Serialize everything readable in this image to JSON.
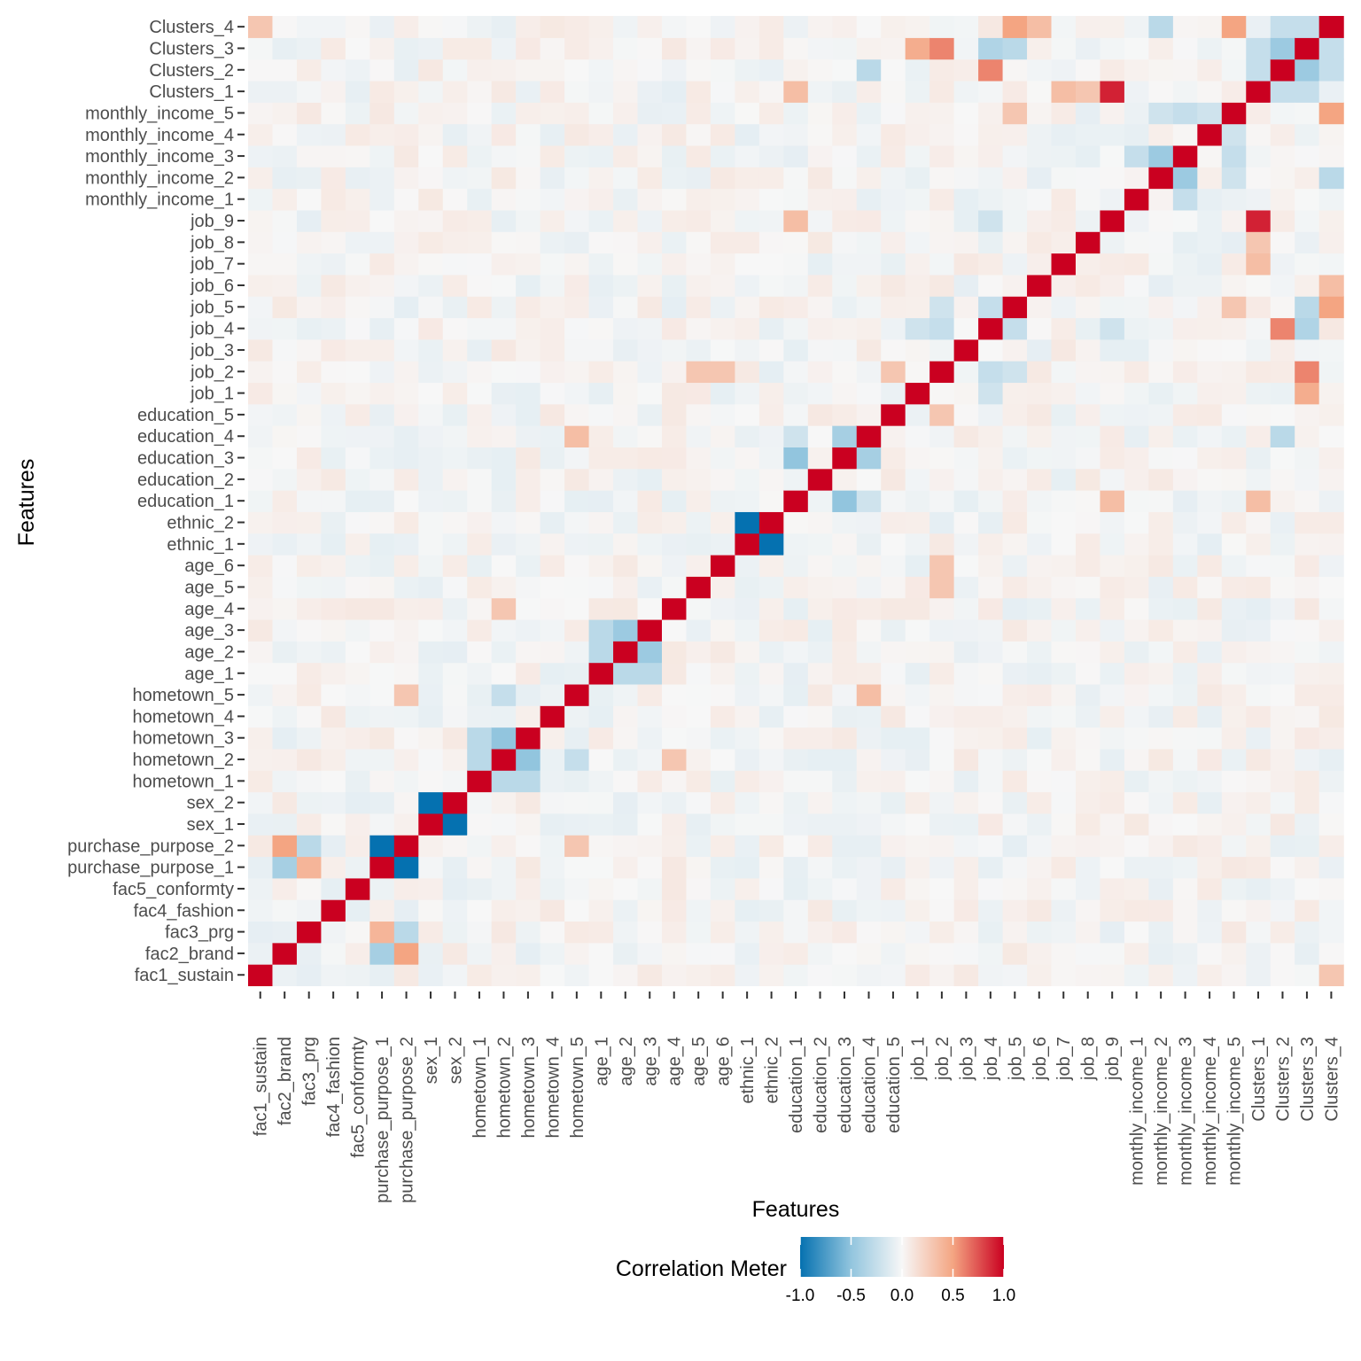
{
  "chart_data": {
    "type": "heatmap",
    "title": "",
    "xlabel": "Features",
    "ylabel": "Features",
    "features": [
      "fac1_sustain",
      "fac2_brand",
      "fac3_prg",
      "fac4_fashion",
      "fac5_conformty",
      "purchase_purpose_1",
      "purchase_purpose_2",
      "sex_1",
      "sex_2",
      "hometown_1",
      "hometown_2",
      "hometown_3",
      "hometown_4",
      "hometown_5",
      "age_1",
      "age_2",
      "age_3",
      "age_4",
      "age_5",
      "age_6",
      "ethnic_1",
      "ethnic_2",
      "education_1",
      "education_2",
      "education_3",
      "education_4",
      "education_5",
      "job_1",
      "job_2",
      "job_3",
      "job_4",
      "job_5",
      "job_6",
      "job_7",
      "job_8",
      "job_9",
      "monthly_income_1",
      "monthly_income_2",
      "monthly_income_3",
      "monthly_income_4",
      "monthly_income_5",
      "Clusters_1",
      "Clusters_2",
      "Clusters_3",
      "Clusters_4"
    ],
    "value_range": [
      -1,
      1
    ],
    "colors": {
      "low": "#0571b0",
      "mid_low": "#92c5de",
      "mid": "#f7f7f7",
      "mid_high": "#f4a582",
      "high": "#ca0020"
    },
    "legend": {
      "title": "Correlation Meter",
      "position": "bottom",
      "ticks": [
        "-1.0",
        "-0.5",
        "0.0",
        "0.5",
        "1.0"
      ]
    },
    "strong_correlations": [
      {
        "a": "purchase_purpose_1",
        "b": "purchase_purpose_2",
        "value": -1.0
      },
      {
        "a": "sex_1",
        "b": "sex_2",
        "value": -1.0
      },
      {
        "a": "ethnic_1",
        "b": "ethnic_2",
        "value": -1.0
      },
      {
        "a": "job_9",
        "b": "Clusters_1",
        "value": 0.9
      },
      {
        "a": "job_4",
        "b": "Clusters_2",
        "value": 0.6
      },
      {
        "a": "job_2",
        "b": "Clusters_3",
        "value": 0.6
      },
      {
        "a": "job_1",
        "b": "Clusters_3",
        "value": 0.45
      },
      {
        "a": "job_5",
        "b": "Clusters_4",
        "value": 0.5
      },
      {
        "a": "monthly_income_5",
        "b": "Clusters_4",
        "value": 0.5
      },
      {
        "a": "job_5",
        "b": "monthly_income_5",
        "value": 0.3
      },
      {
        "a": "Clusters_2",
        "b": "Clusters_3",
        "value": -0.45
      },
      {
        "a": "Clusters_3",
        "b": "job_4",
        "value": -0.35
      },
      {
        "a": "fac2_brand",
        "b": "purchase_purpose_2",
        "value": 0.5
      },
      {
        "a": "fac2_brand",
        "b": "purchase_purpose_1",
        "value": -0.4
      },
      {
        "a": "fac3_prg",
        "b": "purchase_purpose_1",
        "value": 0.4
      },
      {
        "a": "fac3_prg",
        "b": "purchase_purpose_2",
        "value": -0.3
      },
      {
        "a": "hometown_2",
        "b": "hometown_3",
        "value": -0.5
      },
      {
        "a": "hometown_1",
        "b": "hometown_2",
        "value": -0.3
      },
      {
        "a": "hometown_1",
        "b": "hometown_3",
        "value": -0.3
      },
      {
        "a": "hometown_2",
        "b": "hometown_5",
        "value": -0.25
      },
      {
        "a": "hometown_2",
        "b": "age_4",
        "value": 0.3
      },
      {
        "a": "age_1",
        "b": "age_2",
        "value": -0.3
      },
      {
        "a": "age_1",
        "b": "age_3",
        "value": -0.3
      },
      {
        "a": "age_2",
        "b": "age_3",
        "value": -0.45
      },
      {
        "a": "education_1",
        "b": "education_3",
        "value": -0.5
      },
      {
        "a": "education_3",
        "b": "education_4",
        "value": -0.4
      },
      {
        "a": "education_1",
        "b": "education_4",
        "value": -0.2
      },
      {
        "a": "education_5",
        "b": "job_2",
        "value": 0.3
      },
      {
        "a": "education_4",
        "b": "Clusters_2",
        "value": -0.3
      },
      {
        "a": "education_1",
        "b": "job_9",
        "value": 0.35
      },
      {
        "a": "education_1",
        "b": "Clusters_1",
        "value": 0.35
      },
      {
        "a": "monthly_income_2",
        "b": "monthly_income_3",
        "value": -0.45
      },
      {
        "a": "monthly_income_1",
        "b": "monthly_income_3",
        "value": -0.25
      },
      {
        "a": "monthly_income_3",
        "b": "monthly_income_5",
        "value": -0.25
      },
      {
        "a": "monthly_income_4",
        "b": "monthly_income_5",
        "value": -0.2
      },
      {
        "a": "monthly_income_2",
        "b": "monthly_income_5",
        "value": -0.2
      },
      {
        "a": "monthly_income_2",
        "b": "Clusters_4",
        "value": -0.3
      },
      {
        "a": "Clusters_1",
        "b": "Clusters_2",
        "value": -0.25
      },
      {
        "a": "Clusters_1",
        "b": "Clusters_3",
        "value": -0.25
      },
      {
        "a": "Clusters_2",
        "b": "Clusters_4",
        "value": -0.25
      },
      {
        "a": "Clusters_3",
        "b": "Clusters_4",
        "value": -0.25
      },
      {
        "a": "job_2",
        "b": "job_4",
        "value": -0.25
      },
      {
        "a": "job_4",
        "b": "job_5",
        "value": -0.25
      },
      {
        "a": "job_1",
        "b": "job_4",
        "value": -0.2
      },
      {
        "a": "job_2",
        "b": "job_5",
        "value": -0.2
      },
      {
        "a": "job_5",
        "b": "Clusters_3",
        "value": -0.3
      },
      {
        "a": "job_4",
        "b": "job_9",
        "value": -0.2
      },
      {
        "a": "job_2",
        "b": "age_6",
        "value": 0.3
      },
      {
        "a": "job_2",
        "b": "age_5",
        "value": 0.3
      },
      {
        "a": "hometown_5",
        "b": "education_4",
        "value": 0.35
      },
      {
        "a": "hometown_5",
        "b": "purchase_purpose_2",
        "value": 0.3
      },
      {
        "a": "job_7",
        "b": "Clusters_1",
        "value": 0.35
      },
      {
        "a": "job_8",
        "b": "Clusters_1",
        "value": 0.3
      },
      {
        "a": "job_6",
        "b": "Clusters_4",
        "value": 0.35
      },
      {
        "a": "fac1_sustain",
        "b": "Clusters_4",
        "value": 0.3
      }
    ]
  }
}
